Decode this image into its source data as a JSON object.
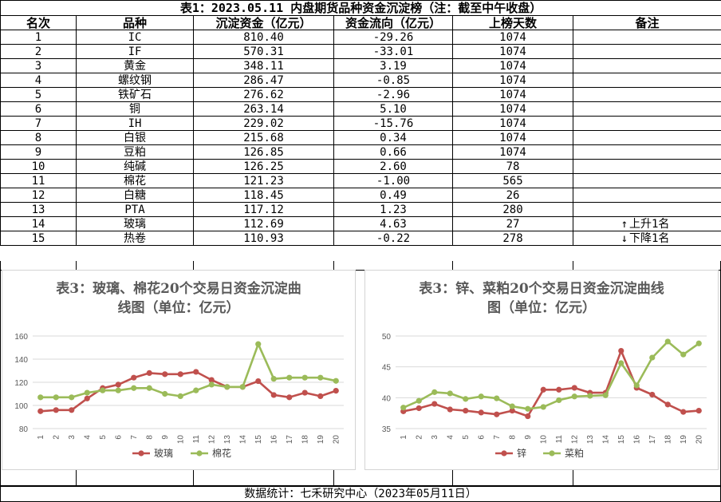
{
  "table": {
    "title": "表1：2023.05.11 内盘期货品种资金沉淀榜（注：截至中午收盘）",
    "headers": [
      "名次",
      "品种",
      "沉淀资金（亿元）",
      "资金流向（亿元）",
      "上榜天数",
      "备注"
    ],
    "rows": [
      {
        "rank": "1",
        "name": "IC",
        "funds": "810.40",
        "flow": "-29.26",
        "days": "1074",
        "note": ""
      },
      {
        "rank": "2",
        "name": "IF",
        "funds": "570.31",
        "flow": "-33.01",
        "days": "1074",
        "note": ""
      },
      {
        "rank": "3",
        "name": "黄金",
        "funds": "348.11",
        "flow": "3.19",
        "days": "1074",
        "note": ""
      },
      {
        "rank": "4",
        "name": "螺纹钢",
        "funds": "286.47",
        "flow": "-0.85",
        "days": "1074",
        "note": ""
      },
      {
        "rank": "5",
        "name": "铁矿石",
        "funds": "276.62",
        "flow": "-2.96",
        "days": "1074",
        "note": ""
      },
      {
        "rank": "6",
        "name": "铜",
        "funds": "263.14",
        "flow": "5.10",
        "days": "1074",
        "note": ""
      },
      {
        "rank": "7",
        "name": "IH",
        "funds": "229.02",
        "flow": "-15.76",
        "days": "1074",
        "note": ""
      },
      {
        "rank": "8",
        "name": "白银",
        "funds": "215.68",
        "flow": "0.34",
        "days": "1074",
        "note": ""
      },
      {
        "rank": "9",
        "name": "豆粕",
        "funds": "126.85",
        "flow": "0.66",
        "days": "1074",
        "note": ""
      },
      {
        "rank": "10",
        "name": "纯碱",
        "funds": "126.25",
        "flow": "2.60",
        "days": "78",
        "note": ""
      },
      {
        "rank": "11",
        "name": "棉花",
        "funds": "121.23",
        "flow": "-1.00",
        "days": "565",
        "note": ""
      },
      {
        "rank": "12",
        "name": "白糖",
        "funds": "118.45",
        "flow": "0.49",
        "days": "26",
        "note": ""
      },
      {
        "rank": "13",
        "name": "PTA",
        "funds": "117.12",
        "flow": "1.23",
        "days": "280",
        "note": ""
      },
      {
        "rank": "14",
        "name": "玻璃",
        "funds": "112.69",
        "flow": "4.63",
        "days": "27",
        "note": "上升1名",
        "arrow": "↑"
      },
      {
        "rank": "15",
        "name": "热卷",
        "funds": "110.93",
        "flow": "-0.22",
        "days": "278",
        "note": "下降1名",
        "arrow": "↓"
      }
    ]
  },
  "footer": "数据统计：七禾研究中心（2023年05月11日）",
  "chart_data": [
    {
      "type": "line",
      "title": "表3：玻璃、棉花20个交易日资金沉淀曲线图（单位：亿元）",
      "title_lines": [
        "表3：玻璃、棉花20个交易日资金沉淀曲",
        "线图（单位：亿元）"
      ],
      "categories": [
        "1",
        "2",
        "3",
        "4",
        "5",
        "6",
        "7",
        "8",
        "9",
        "10",
        "11",
        "12",
        "13",
        "14",
        "15",
        "16",
        "17",
        "18",
        "19",
        "20"
      ],
      "ylim": [
        80,
        160
      ],
      "yticks": [
        80,
        100,
        120,
        140,
        160
      ],
      "grid": true,
      "legend": "bottom",
      "series": [
        {
          "name": "玻璃",
          "color": "#c0504d",
          "values": [
            95,
            96,
            96,
            106,
            115,
            118,
            124,
            128,
            127,
            127,
            129,
            122,
            116,
            116,
            121,
            109,
            107,
            111,
            108,
            112.69
          ]
        },
        {
          "name": "棉花",
          "color": "#9bbb59",
          "values": [
            107,
            107,
            107,
            111,
            113,
            113,
            115,
            115,
            110,
            108,
            113,
            118,
            116,
            116,
            153,
            123,
            124,
            124,
            124,
            121.23
          ]
        }
      ]
    },
    {
      "type": "line",
      "title": "表3：锌、菜粕20个交易日资金沉淀曲线图（单位：亿元）",
      "title_lines": [
        "表3：锌、菜粕20个交易日资金沉淀曲线",
        "图（单位：亿元）"
      ],
      "categories": [
        "1",
        "2",
        "3",
        "4",
        "5",
        "6",
        "7",
        "8",
        "9",
        "10",
        "11",
        "12",
        "13",
        "14",
        "15",
        "16",
        "17",
        "18",
        "19",
        "20"
      ],
      "ylim": [
        35,
        50
      ],
      "yticks": [
        35,
        40,
        45,
        50
      ],
      "grid": true,
      "legend": "bottom",
      "series": [
        {
          "name": "锌",
          "color": "#c0504d",
          "values": [
            37.8,
            38.3,
            39.0,
            38.1,
            37.9,
            37.6,
            37.3,
            37.9,
            37.0,
            41.3,
            41.3,
            41.6,
            40.8,
            40.8,
            47.6,
            41.6,
            40.5,
            38.9,
            37.7,
            37.9
          ]
        },
        {
          "name": "菜粕",
          "color": "#9bbb59",
          "values": [
            38.4,
            39.5,
            40.9,
            40.7,
            39.8,
            40.2,
            39.9,
            38.6,
            38.2,
            38.5,
            39.6,
            40.2,
            40.3,
            40.4,
            45.6,
            42.0,
            46.5,
            49.1,
            47.0,
            48.8
          ]
        }
      ]
    }
  ]
}
